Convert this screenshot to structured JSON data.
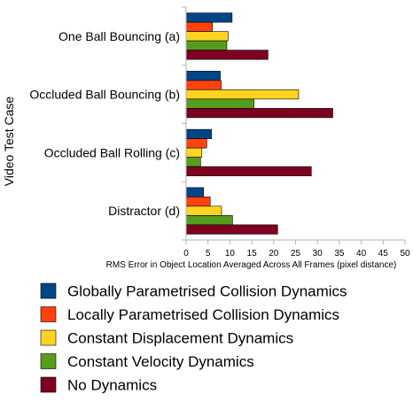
{
  "chart_data": {
    "type": "bar",
    "orientation": "horizontal",
    "title": "",
    "xlabel": "RMS Error in Object Location Averaged Across All Frames (pixel distance)",
    "ylabel": "Video Test Case",
    "xlim": [
      0,
      50
    ],
    "xticks": [
      0,
      5,
      10,
      15,
      20,
      25,
      30,
      35,
      40,
      45,
      50
    ],
    "grid": false,
    "legend_position": "bottom",
    "categories": [
      "One Ball Bouncing (a)",
      "Occluded Ball Bouncing (b)",
      "Occluded Ball Rolling (c)",
      "Distractor (d)"
    ],
    "series": [
      {
        "name": "Globally Parametrised Collision Dynamics",
        "color": "#004586",
        "values": [
          10.5,
          7.8,
          5.8,
          4.0
        ]
      },
      {
        "name": "Locally Parametrised Collision Dynamics",
        "color": "#ff420e",
        "values": [
          6.0,
          8.0,
          4.7,
          5.5
        ]
      },
      {
        "name": "Constant Displacement Dynamics",
        "color": "#ffd320",
        "values": [
          9.6,
          25.7,
          3.6,
          8.1
        ]
      },
      {
        "name": "Constant Velocity Dynamics",
        "color": "#579d1c",
        "values": [
          9.3,
          15.5,
          3.3,
          10.6
        ]
      },
      {
        "name": "No Dynamics",
        "color": "#7e0021",
        "values": [
          18.7,
          33.5,
          28.6,
          20.9
        ]
      }
    ]
  }
}
